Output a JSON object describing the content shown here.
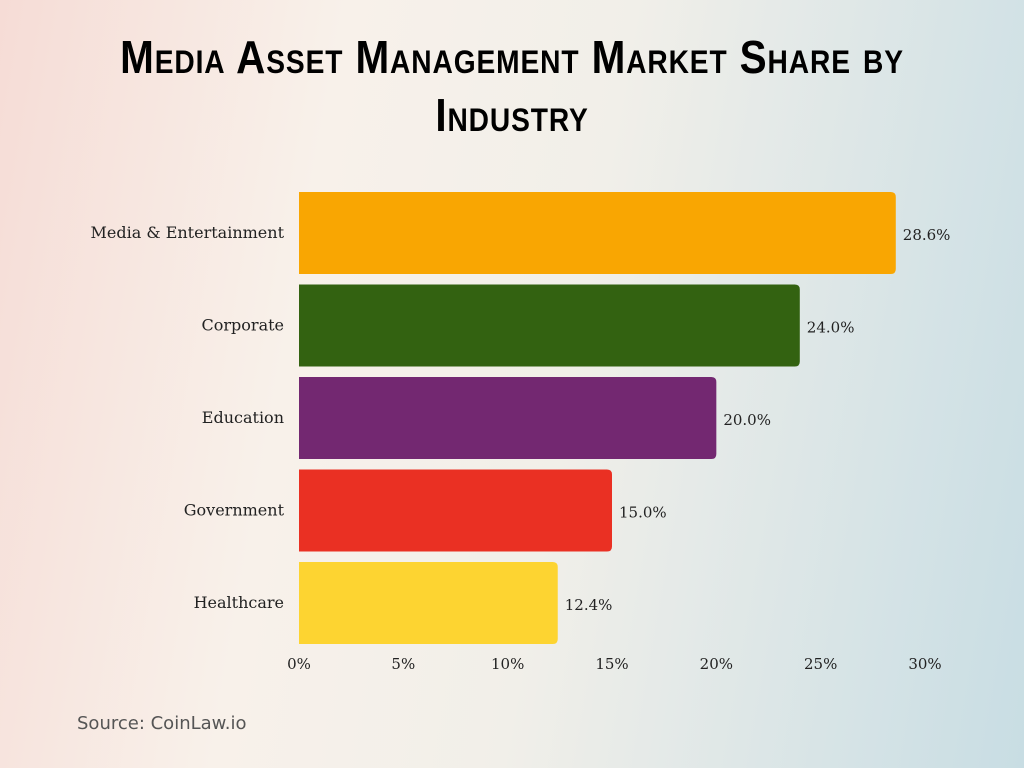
{
  "chart_data": {
    "type": "bar",
    "orientation": "horizontal",
    "title": "Media Asset Management Market Share by Industry",
    "categories": [
      "Media & Entertainment",
      "Corporate",
      "Education",
      "Government",
      "Healthcare"
    ],
    "values": [
      28.6,
      24.0,
      20.0,
      15.0,
      12.4
    ],
    "data_labels": [
      "28.6%",
      "24.0%",
      "20.0%",
      "15.0%",
      "12.4%"
    ],
    "colors": [
      "#F9A602",
      "#336211",
      "#732871",
      "#EA3023",
      "#FDD431"
    ],
    "xlim": [
      0,
      30
    ],
    "xticks": [
      0,
      5,
      10,
      15,
      20,
      25,
      30
    ],
    "xtick_labels": [
      "0%",
      "5%",
      "10%",
      "15%",
      "20%",
      "25%",
      "30%"
    ],
    "xlabel": "",
    "ylabel": "",
    "grid": false,
    "legend": "none"
  },
  "source": "Source: CoinLaw.io"
}
